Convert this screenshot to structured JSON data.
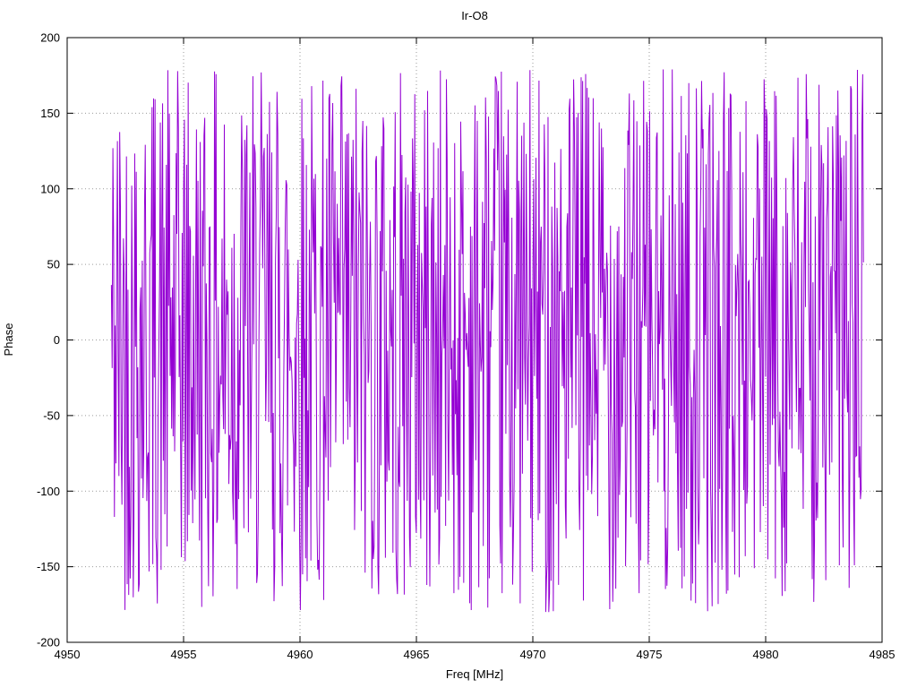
{
  "chart_data": {
    "type": "line",
    "title": "Ir-O8",
    "xlabel": "Freq [MHz]",
    "ylabel": "Phase",
    "xlim": [
      4950,
      4985
    ],
    "ylim": [
      -200,
      200
    ],
    "xticks": [
      4950,
      4955,
      4960,
      4965,
      4970,
      4975,
      4980,
      4985
    ],
    "yticks": [
      -200,
      -150,
      -100,
      -50,
      0,
      50,
      100,
      150,
      200
    ],
    "grid": true,
    "legend_position": "none",
    "description": "Densely oscillating wrapped phase values (noise-like, bounded approximately between -180 and +180 degrees) across the frequency span 4952-4984 MHz",
    "series": [
      {
        "name": "phase",
        "color": "#9400d3",
        "x_start": 4951.9,
        "x_end": 4984.2,
        "n_points": 1000,
        "y_min": -180,
        "y_max": 180,
        "distribution": "uniform-wrapped-phase",
        "seed": 42
      }
    ],
    "colors": {
      "line": "#9400d3",
      "grid": "#9a9a9a",
      "border": "#000000",
      "text": "#000000",
      "background": "#ffffff"
    }
  }
}
